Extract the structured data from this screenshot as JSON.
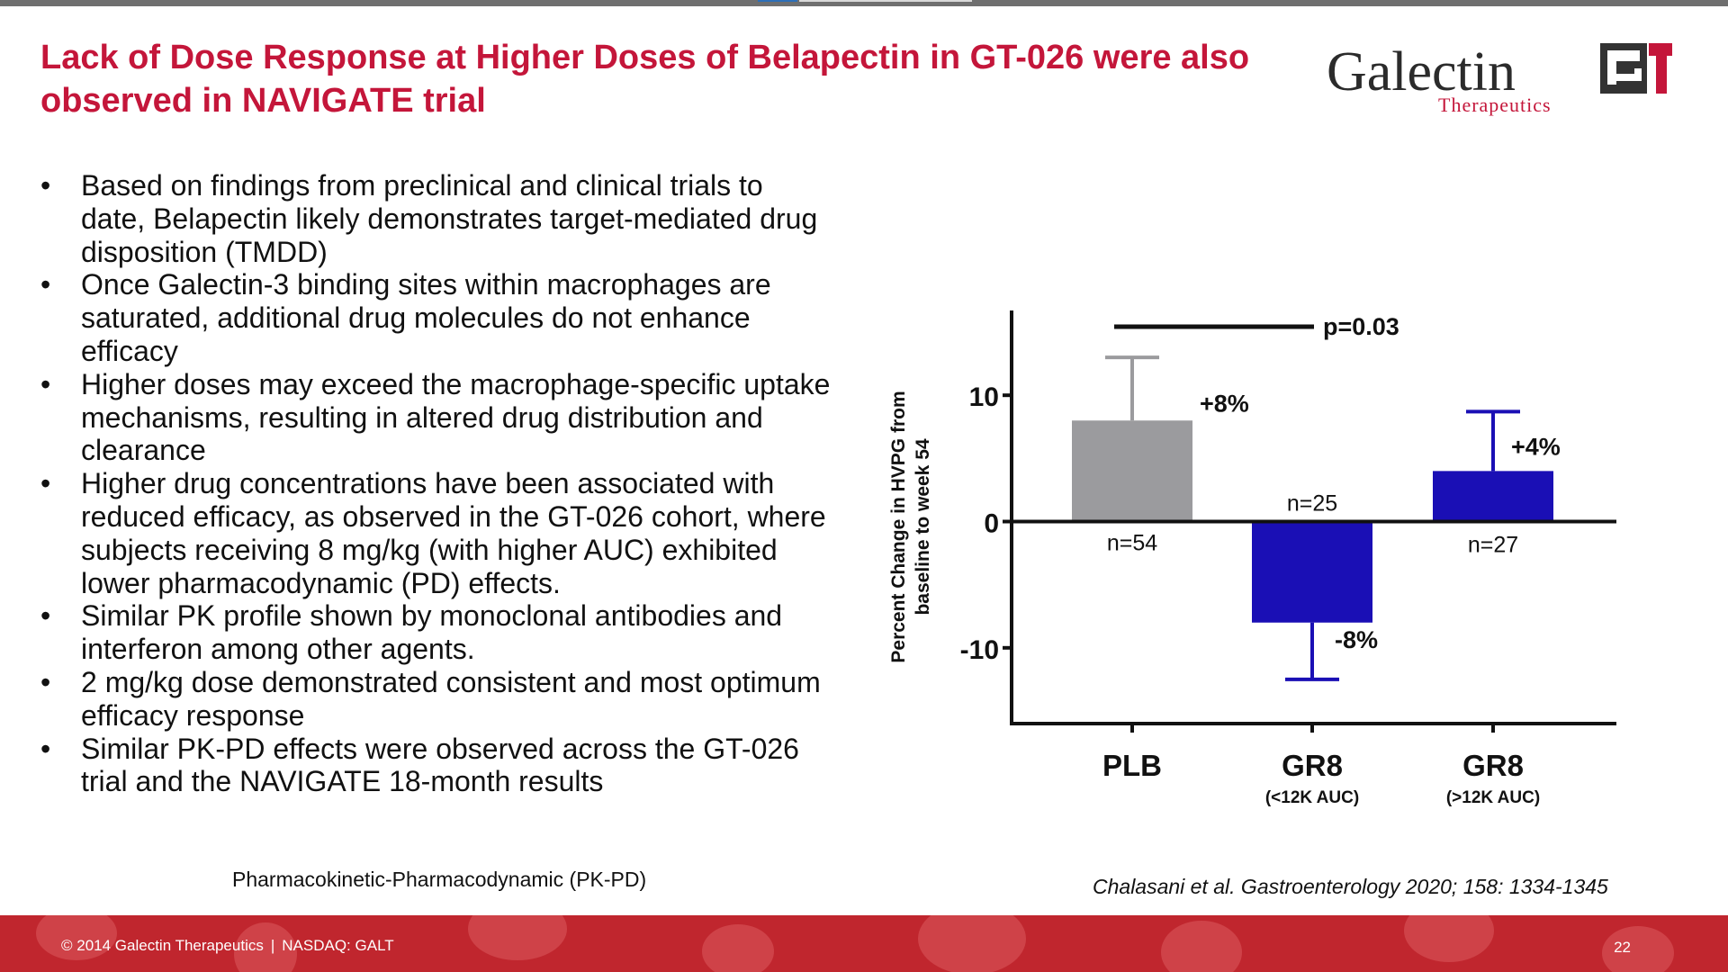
{
  "slide": {
    "title": "Lack of Dose Response at Higher Doses of Belapectin in GT-026 were also observed in NAVIGATE trial",
    "logo": {
      "name": "Galectin",
      "subtitle": "Therapeutics",
      "mark_text": "GT",
      "colors": {
        "text": "#2b2b2b",
        "accent": "#c4163a",
        "mark_dark": "#333333"
      }
    },
    "bullets": [
      "Based on findings from preclinical and clinical trials to date, Belapectin likely demonstrates target-mediated drug disposition (TMDD)",
      "Once Galectin-3 binding sites within macrophages are saturated, additional drug molecules do not enhance efficacy",
      "Higher doses may exceed the macrophage-specific uptake mechanisms, resulting in altered drug distribution and clearance",
      "Higher drug concentrations have been associated with reduced efficacy, as observed in the GT-026 cohort, where subjects receiving 8 mg/kg (with higher AUC) exhibited lower pharmacodynamic (PD) effects.",
      "Similar PK profile shown by monoclonal antibodies and interferon among other agents.",
      "2 mg/kg dose demonstrated consistent and most optimum efficacy response",
      "Similar PK-PD effects were observed across the GT-026 trial and the NAVIGATE 18-month results"
    ],
    "bullet_symbol": "•",
    "pkpd_note": "Pharmacokinetic-Pharmacodynamic (PK-PD)",
    "citation": "Chalasani et al. Gastroenterology 2020; 158: 1334-1345",
    "footer": {
      "copyright": "© 2014 Galectin Therapeutics",
      "separator": "|",
      "ticker": "NASDAQ: GALT",
      "page_number": "22"
    },
    "colors": {
      "title": "#c4163a",
      "footer_bg": "#c0262e",
      "placebo_bar": "#9b9b9e",
      "gr8_bar": "#1a0fb5",
      "axis": "#111111"
    }
  },
  "chart_data": {
    "type": "bar",
    "title": "",
    "xlabel": "",
    "ylabel": "Percent Change in HVPG from baseline to week 54",
    "ylabel_lines": [
      "Percent Change in HVPG from",
      "baseline to week 54"
    ],
    "ylim": [
      -16,
      16
    ],
    "yticks": [
      10,
      0,
      -10
    ],
    "ytick_labels": [
      "10",
      "0",
      "-10"
    ],
    "categories": [
      "PLB",
      "GR8",
      "GR8"
    ],
    "category_sublabels": [
      "",
      "(<12K AUC)",
      "(>12K AUC)"
    ],
    "values": [
      8,
      -8,
      4
    ],
    "error_upper": [
      13,
      null,
      8.7
    ],
    "error_lower": [
      null,
      -12.5,
      null
    ],
    "value_labels": [
      "+8%",
      "-8%",
      "+4%"
    ],
    "n_labels": [
      "n=54",
      "n=25",
      "n=27"
    ],
    "bar_colors": [
      "#9b9b9e",
      "#1a0fb5",
      "#1a0fb5"
    ],
    "significance": {
      "label": "p=0.03",
      "from_category": 0,
      "to_category": 1
    }
  }
}
